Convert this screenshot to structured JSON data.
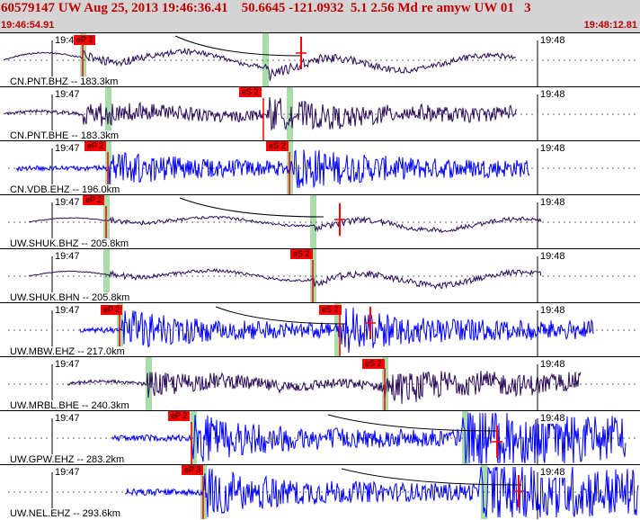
{
  "header": {
    "title": "60579147 UW Aug 25, 2013 19:46:36.41    50.6645 -121.0932  5.1 2.56 Md re amyw UW 01   3",
    "start_time": "19:46:54.91",
    "end_time": "19:48:12.81"
  },
  "colors": {
    "header_bg": "#d4d4d4",
    "title_red": "#c00000",
    "trace_dark": "#2b0a5a",
    "trace_blue": "#0000ff",
    "pick_red": "#ff0000",
    "marker_green": "#a8dca8"
  },
  "panels": [
    {
      "station": "CN.PNT.BHZ -- 183.3km",
      "minute_start": "19:47",
      "minute_end": "19:48",
      "picks": [
        "eP 2"
      ],
      "color": "dark",
      "amp": 0.55,
      "start": 0.0,
      "end": 0.81,
      "arrival": 0.13,
      "s_arrival": 0.42,
      "decay": 0.12,
      "style": "lp"
    },
    {
      "station": "CN.PNT.BHE -- 183.3km",
      "minute_start": "19:47",
      "minute_end": "19:48",
      "picks": [
        "eS 2"
      ],
      "color": "dark",
      "amp": 0.35,
      "start": 0.0,
      "end": 0.81,
      "arrival": 0.13,
      "s_arrival": 0.42,
      "decay": 0.15,
      "style": "mixed"
    },
    {
      "station": "CN.VDB.EHZ -- 196.0km",
      "minute_start": "19:47",
      "minute_end": "19:48",
      "picks": [
        "eP 2",
        "eS 2"
      ],
      "color": "blue",
      "amp": 0.45,
      "start": 0.02,
      "end": 0.83,
      "arrival": 0.17,
      "s_arrival": 0.46,
      "decay": 0.1,
      "style": "hf"
    },
    {
      "station": "UW.SHUK.BHZ -- 205.8km",
      "minute_start": "19:47",
      "minute_end": "19:48",
      "picks": [
        "eP 2"
      ],
      "color": "dark",
      "amp": 0.3,
      "start": 0.04,
      "end": 0.85,
      "arrival": 0.17,
      "s_arrival": 0.49,
      "decay": 0.3,
      "style": "lp"
    },
    {
      "station": "UW.SHUK.BHN -- 205.8km",
      "minute_start": "19:47",
      "minute_end": "19:48",
      "picks": [
        "eS 2"
      ],
      "color": "dark",
      "amp": 0.35,
      "start": 0.04,
      "end": 0.85,
      "arrival": 0.17,
      "s_arrival": 0.49,
      "decay": 0.3,
      "style": "lp"
    },
    {
      "station": "UW.MBW.EHZ -- 217.0km",
      "minute_start": "19:47",
      "minute_end": "19:48",
      "picks": [
        "eP 2",
        "eS 2"
      ],
      "color": "blue",
      "amp": 0.5,
      "start": 0.12,
      "end": 0.93,
      "arrival": 0.19,
      "s_arrival": 0.53,
      "decay": 0.08,
      "style": "hf"
    },
    {
      "station": "UW.MRBL.BHE -- 240.3km",
      "minute_start": "19:47",
      "minute_end": "19:48",
      "picks": [
        "eS 2"
      ],
      "color": "dark",
      "amp": 0.35,
      "start": 0.1,
      "end": 0.91,
      "arrival": 0.23,
      "s_arrival": 0.6,
      "decay": 0.25,
      "style": "mixed"
    },
    {
      "station": "UW.GPW.EHZ -- 283.2km",
      "minute_start": "19:47",
      "minute_end": "19:48",
      "picks": [
        "eP 2"
      ],
      "color": "blue",
      "amp": 0.6,
      "start": 0.17,
      "end": 0.98,
      "arrival": 0.3,
      "s_arrival": 0.72,
      "decay": 0.4,
      "style": "hf"
    },
    {
      "station": "UW.NEL.EHZ -- 293.6km",
      "minute_start": "19:47",
      "minute_end": "19:48",
      "picks": [
        "eP 3"
      ],
      "color": "blue",
      "amp": 0.6,
      "start": 0.19,
      "end": 1.0,
      "arrival": 0.32,
      "s_arrival": 0.75,
      "decay": 0.45,
      "style": "hf"
    }
  ]
}
